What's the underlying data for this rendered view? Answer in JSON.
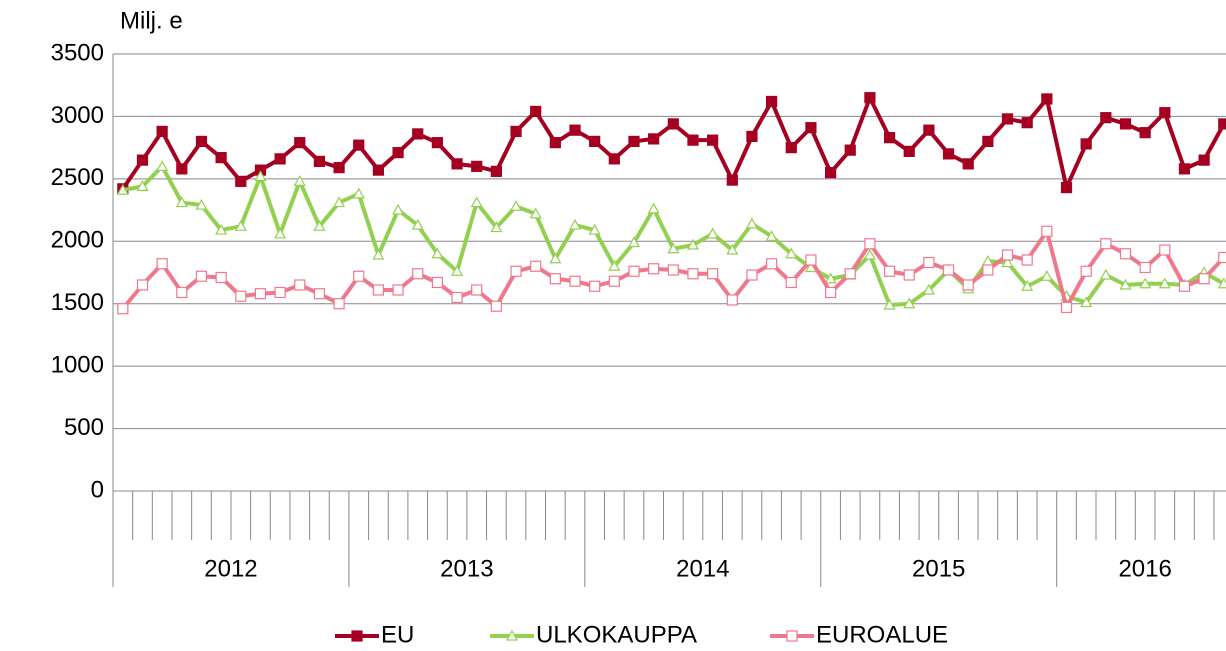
{
  "chart_data": {
    "type": "line",
    "y_label": "Milj. e",
    "x_groups": [
      "2012",
      "2013",
      "2014",
      "2015",
      "2016"
    ],
    "categories": [
      null,
      null,
      null,
      null,
      null,
      null,
      null,
      null,
      null,
      null,
      null,
      null,
      null,
      null,
      null,
      null,
      null,
      null,
      null,
      null,
      null,
      null,
      null,
      null,
      null,
      null,
      null,
      null,
      null,
      null,
      null,
      null,
      null,
      null,
      null,
      null,
      null,
      null,
      null,
      null,
      null,
      null,
      null,
      null,
      null,
      null,
      null,
      null,
      null,
      null,
      null,
      null,
      null,
      null,
      null,
      null,
      null
    ],
    "ylim": [
      0,
      3500
    ],
    "yticks": [
      0,
      500,
      1000,
      1500,
      2000,
      2500,
      3000,
      3500
    ],
    "grid": true,
    "legend": "bottom",
    "series": [
      {
        "name": "EU",
        "color": "#a50021",
        "marker": "square-filled",
        "values": [
          2420,
          2650,
          2880,
          2580,
          2800,
          2670,
          2480,
          2570,
          2660,
          2790,
          2640,
          2590,
          2770,
          2570,
          2710,
          2860,
          2790,
          2620,
          2600,
          2560,
          2880,
          3040,
          2790,
          2890,
          2800,
          2660,
          2800,
          2820,
          2940,
          2810,
          2810,
          2490,
          2840,
          3120,
          2750,
          2910,
          2550,
          2730,
          3150,
          2830,
          2720,
          2890,
          2700,
          2620,
          2800,
          2980,
          2950,
          3140,
          2430,
          2780,
          2990,
          2940,
          2870,
          3030,
          2580,
          2650,
          2940
        ]
      },
      {
        "name": "ULKOKAUPPA",
        "color": "#92d050",
        "marker": "triangle-open",
        "values": [
          2410,
          2440,
          2600,
          2310,
          2290,
          2090,
          2120,
          2520,
          2060,
          2480,
          2120,
          2310,
          2380,
          1890,
          2250,
          2130,
          1900,
          1760,
          2310,
          2110,
          2280,
          2220,
          1860,
          2130,
          2090,
          1800,
          1990,
          2260,
          1940,
          1970,
          2060,
          1930,
          2140,
          2040,
          1900,
          1790,
          1700,
          1730,
          1890,
          1490,
          1500,
          1610,
          1770,
          1620,
          1840,
          1830,
          1640,
          1720,
          1560,
          1510,
          1730,
          1650,
          1660,
          1660,
          1650,
          1750,
          1660
        ]
      },
      {
        "name": "EUROALUE",
        "color": "#f0788c",
        "marker": "square-open",
        "values": [
          1460,
          1650,
          1820,
          1590,
          1720,
          1710,
          1560,
          1580,
          1590,
          1650,
          1580,
          1500,
          1720,
          1610,
          1610,
          1740,
          1670,
          1550,
          1610,
          1480,
          1760,
          1800,
          1700,
          1680,
          1640,
          1680,
          1760,
          1780,
          1770,
          1740,
          1740,
          1530,
          1730,
          1820,
          1670,
          1850,
          1590,
          1740,
          1980,
          1760,
          1730,
          1830,
          1770,
          1650,
          1770,
          1890,
          1850,
          2080,
          1470,
          1760,
          1980,
          1900,
          1790,
          1930,
          1640,
          1700,
          1870
        ]
      }
    ]
  }
}
